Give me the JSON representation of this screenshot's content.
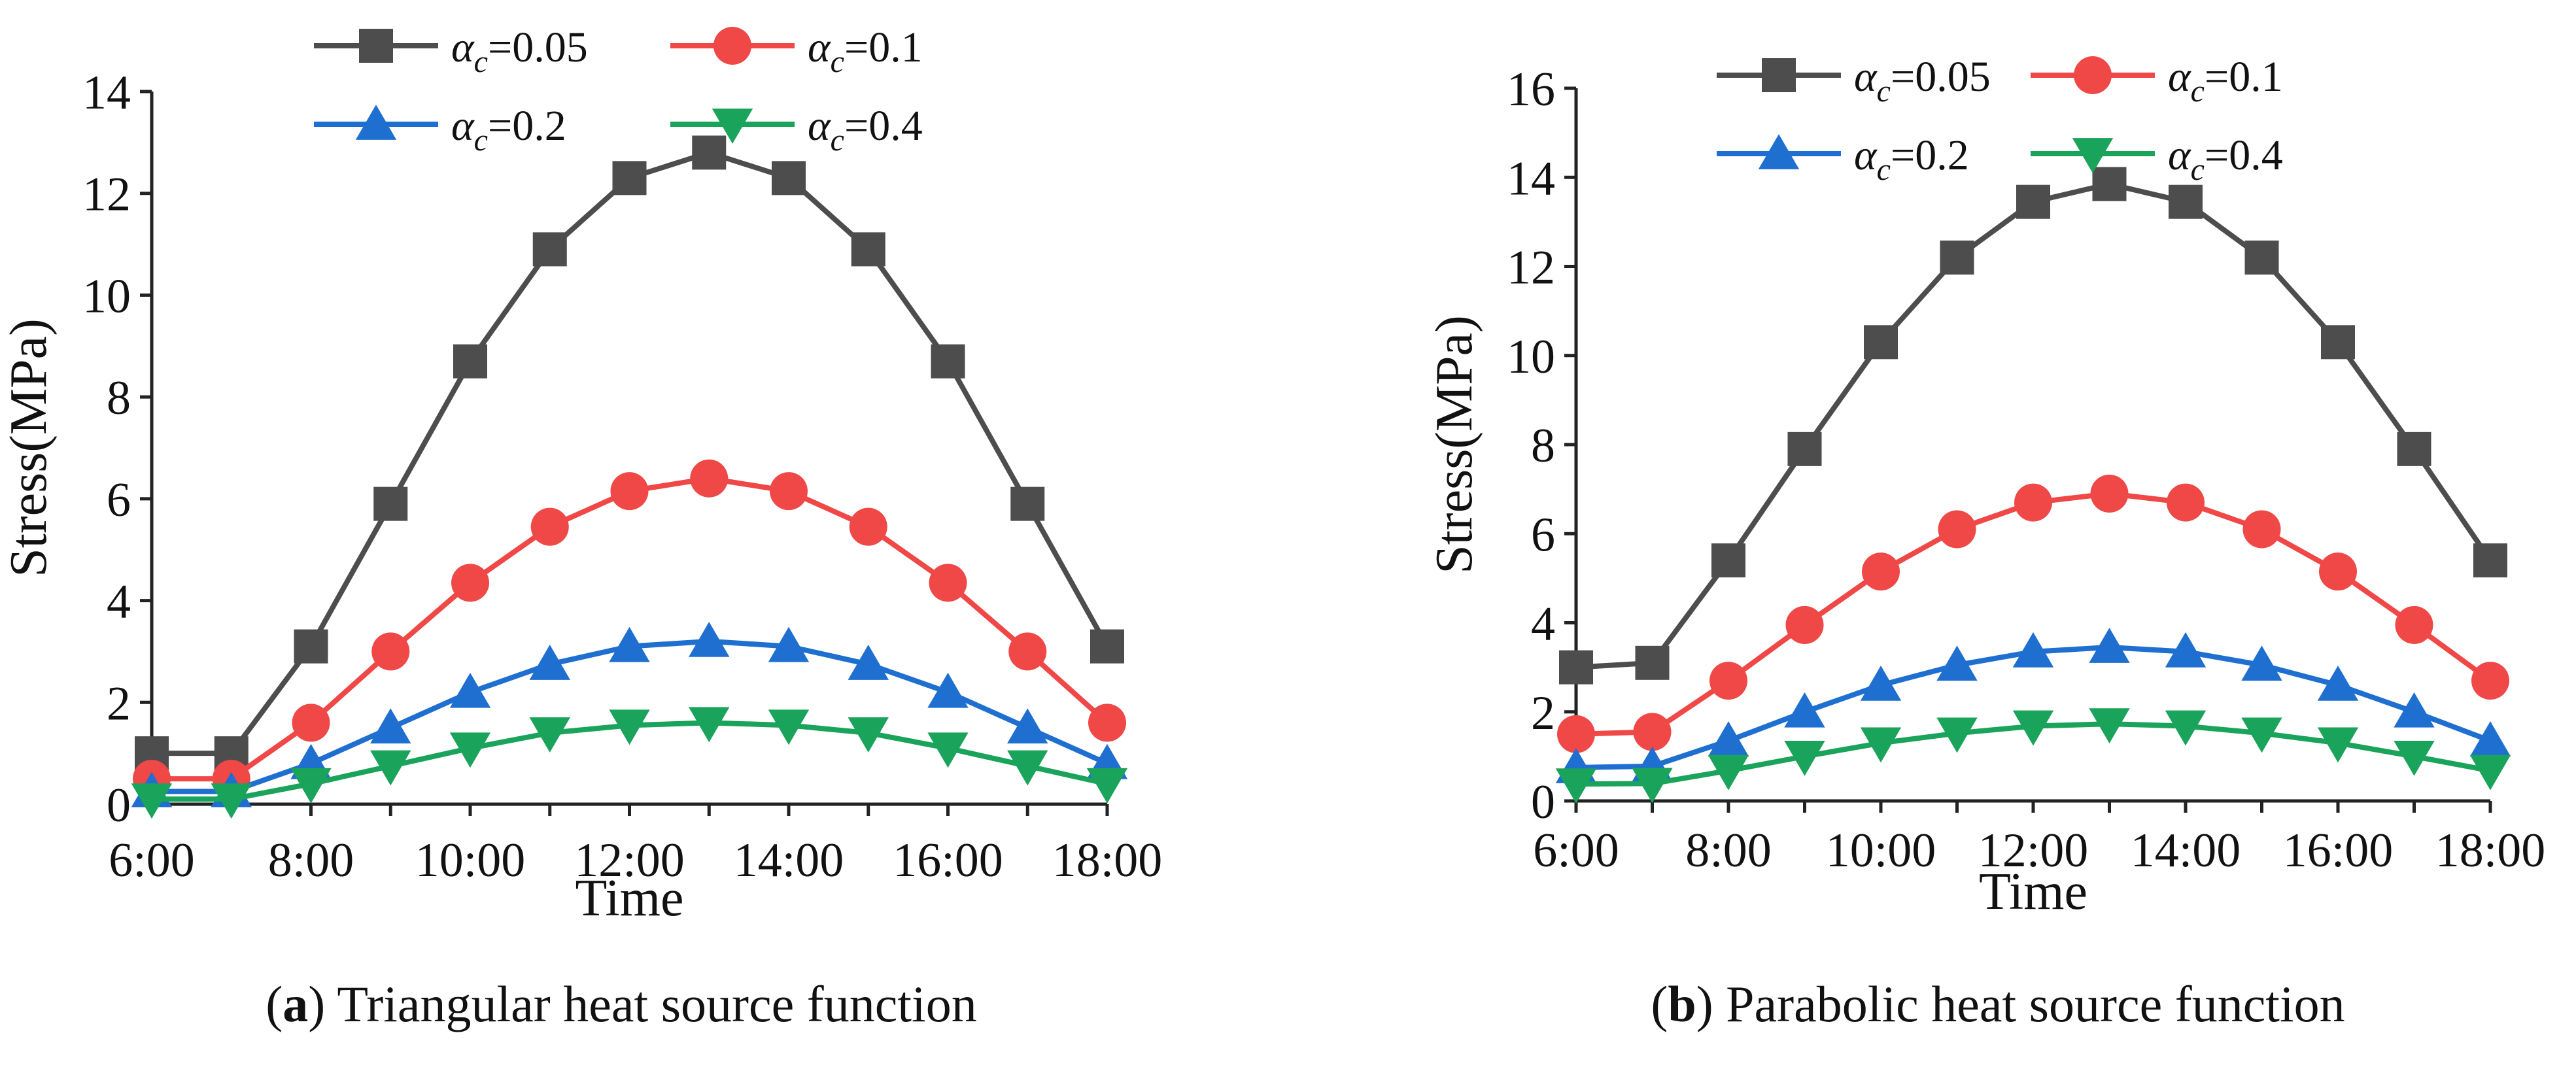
{
  "chart_data": [
    {
      "type": "line",
      "panel_label": "a",
      "caption": "Triangular heat source function",
      "xlabel": "Time",
      "ylabel": "Stress(MPa)",
      "categories": [
        "6:00",
        "7:00",
        "8:00",
        "9:00",
        "10:00",
        "11:00",
        "12:00",
        "13:00",
        "14:00",
        "15:00",
        "16:00",
        "17:00",
        "18:00"
      ],
      "x_tick_labels": [
        "6:00",
        "8:00",
        "10:00",
        "12:00",
        "14:00",
        "16:00",
        "18:00"
      ],
      "ylim": [
        0,
        14
      ],
      "y_ticks": [
        0,
        2,
        4,
        6,
        8,
        10,
        12,
        14
      ],
      "legend_position": "top",
      "series": [
        {
          "name": "α_c=0.05",
          "symbol": "αc",
          "value_text": "=0.05",
          "color": "#4d4d4d",
          "marker": "square",
          "values": [
            1.0,
            1.0,
            3.1,
            5.9,
            8.7,
            10.9,
            12.3,
            12.8,
            12.3,
            10.9,
            8.7,
            5.9,
            3.1
          ]
        },
        {
          "name": "α_c=0.1",
          "symbol": "αc",
          "value_text": "=0.1",
          "color": "#f04747",
          "marker": "circle",
          "values": [
            0.5,
            0.5,
            1.6,
            3.0,
            4.35,
            5.45,
            6.15,
            6.4,
            6.15,
            5.45,
            4.35,
            3.0,
            1.6
          ]
        },
        {
          "name": "α_c=0.2",
          "symbol": "αc",
          "value_text": "=0.2",
          "color": "#1f6fd0",
          "marker": "triangle-up",
          "values": [
            0.25,
            0.25,
            0.8,
            1.5,
            2.2,
            2.75,
            3.1,
            3.2,
            3.1,
            2.75,
            2.2,
            1.5,
            0.8
          ]
        },
        {
          "name": "α_c=0.4",
          "symbol": "αc",
          "value_text": "=0.4",
          "color": "#1aa35a",
          "marker": "triangle-down",
          "values": [
            0.1,
            0.1,
            0.4,
            0.75,
            1.1,
            1.4,
            1.55,
            1.6,
            1.55,
            1.4,
            1.1,
            0.75,
            0.4
          ]
        }
      ]
    },
    {
      "type": "line",
      "panel_label": "b",
      "caption": "Parabolic heat source function",
      "xlabel": "Time",
      "ylabel": "Stress(MPa)",
      "categories": [
        "6:00",
        "7:00",
        "8:00",
        "9:00",
        "10:00",
        "11:00",
        "12:00",
        "13:00",
        "14:00",
        "15:00",
        "16:00",
        "17:00",
        "18:00"
      ],
      "x_tick_labels": [
        "6:00",
        "8:00",
        "10:00",
        "12:00",
        "14:00",
        "16:00",
        "18:00"
      ],
      "ylim": [
        0,
        16
      ],
      "y_ticks": [
        0,
        2,
        4,
        6,
        8,
        10,
        12,
        14,
        16
      ],
      "legend_position": "top",
      "series": [
        {
          "name": "α_c=0.05",
          "symbol": "αc",
          "value_text": "=0.05",
          "color": "#4d4d4d",
          "marker": "square",
          "values": [
            3.0,
            3.1,
            5.4,
            7.9,
            10.3,
            12.2,
            13.45,
            13.85,
            13.45,
            12.2,
            10.3,
            7.9,
            5.4
          ]
        },
        {
          "name": "α_c=0.1",
          "symbol": "αc",
          "value_text": "=0.1",
          "color": "#f04747",
          "marker": "circle",
          "values": [
            1.5,
            1.55,
            2.7,
            3.95,
            5.15,
            6.1,
            6.7,
            6.9,
            6.7,
            6.1,
            5.15,
            3.95,
            2.7
          ]
        },
        {
          "name": "α_c=0.2",
          "symbol": "αc",
          "value_text": "=0.2",
          "color": "#1f6fd0",
          "marker": "triangle-up",
          "values": [
            0.75,
            0.78,
            1.35,
            2.0,
            2.6,
            3.05,
            3.35,
            3.45,
            3.35,
            3.05,
            2.6,
            2.0,
            1.35
          ]
        },
        {
          "name": "α_c=0.4",
          "symbol": "αc",
          "value_text": "=0.4",
          "color": "#1aa35a",
          "marker": "triangle-down",
          "values": [
            0.38,
            0.39,
            0.68,
            1.0,
            1.3,
            1.52,
            1.68,
            1.73,
            1.68,
            1.52,
            1.3,
            1.0,
            0.68
          ]
        }
      ]
    }
  ]
}
